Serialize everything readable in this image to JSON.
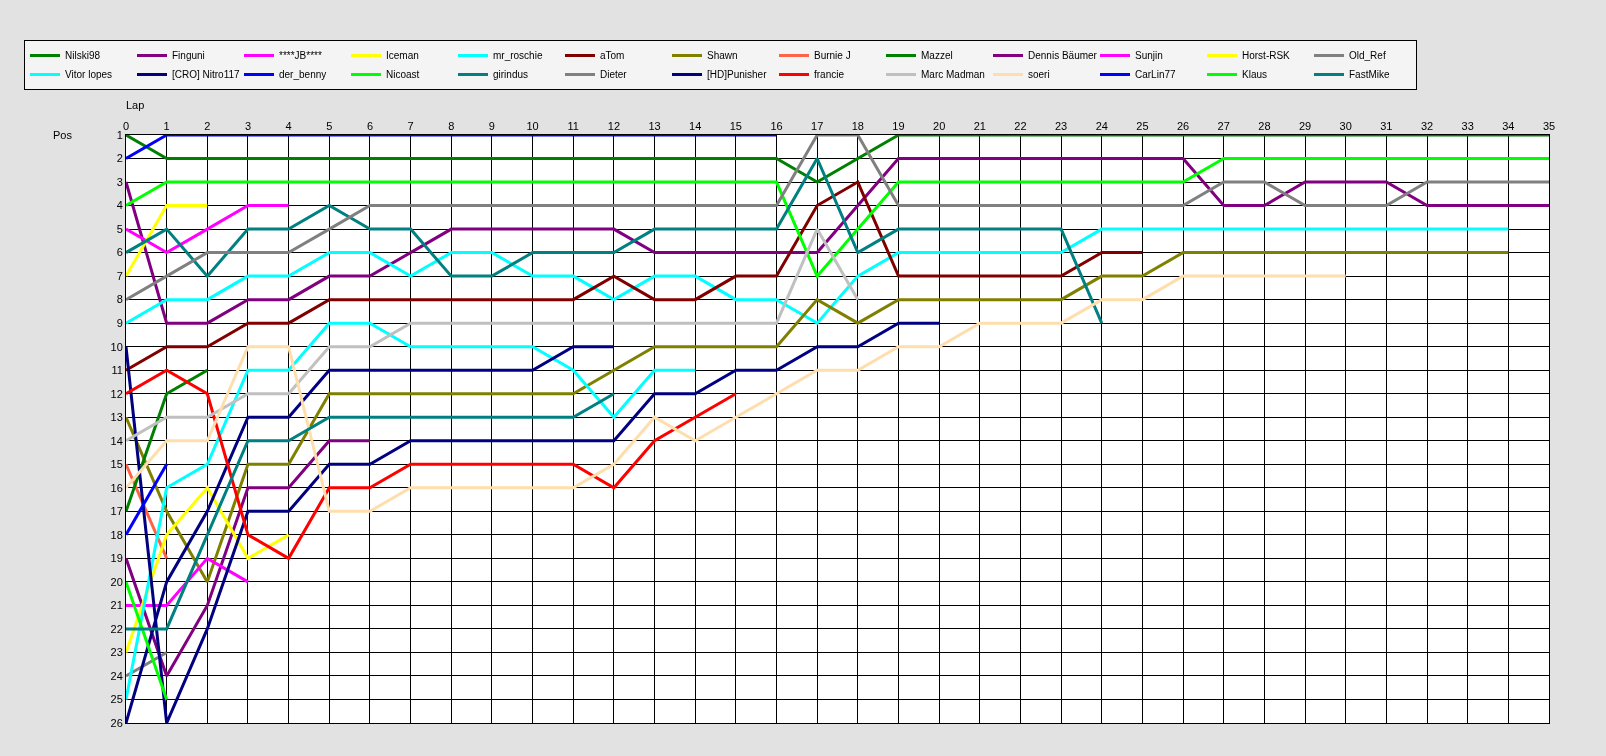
{
  "chart_data": {
    "type": "line",
    "xlabel": "Lap",
    "ylabel": "Pos",
    "x": [
      0,
      1,
      2,
      3,
      4,
      5,
      6,
      7,
      8,
      9,
      10,
      11,
      12,
      13,
      14,
      15,
      16,
      17,
      18,
      19,
      20,
      21,
      22,
      23,
      24,
      25,
      26,
      27,
      28,
      29,
      30,
      31,
      32,
      33,
      34,
      35
    ],
    "xlim": [
      0,
      35
    ],
    "xticks": [
      0,
      1,
      2,
      3,
      4,
      5,
      6,
      7,
      8,
      9,
      10,
      11,
      12,
      13,
      14,
      15,
      16,
      17,
      18,
      19,
      20,
      21,
      22,
      23,
      24,
      25,
      26,
      27,
      28,
      29,
      30,
      31,
      32,
      33,
      34,
      35
    ],
    "ylim": [
      26,
      1
    ],
    "yticks": [
      1,
      2,
      3,
      4,
      5,
      6,
      7,
      8,
      9,
      10,
      11,
      12,
      13,
      14,
      15,
      16,
      17,
      18,
      19,
      20,
      21,
      22,
      23,
      24,
      25,
      26
    ],
    "grid": true,
    "legend": "top",
    "series": [
      {
        "name": "Nilski98",
        "color": "#008000",
        "values": [
          1,
          2,
          2,
          2,
          2,
          2,
          2,
          2,
          2,
          2,
          2,
          2,
          2,
          2,
          2,
          2,
          2,
          3,
          2,
          1,
          1,
          1,
          1,
          1,
          1,
          1,
          1,
          1,
          1,
          1,
          1,
          1,
          1,
          1,
          1,
          1
        ]
      },
      {
        "name": "Finguni",
        "color": "#800080",
        "values": [
          3,
          9,
          9,
          8,
          8,
          7,
          7,
          6,
          5,
          5,
          5,
          5,
          5,
          6,
          6,
          6,
          6,
          6,
          4,
          2,
          2,
          2,
          2,
          2,
          2,
          2,
          2,
          4,
          4,
          3,
          3,
          3,
          4,
          4,
          4,
          4
        ]
      },
      {
        "name": "****JB****",
        "color": "#ff00ff",
        "values": [
          5,
          6,
          5,
          4,
          4,
          null,
          null,
          null,
          null,
          null,
          null,
          null,
          null,
          null,
          null,
          null,
          null,
          null,
          null,
          null,
          null,
          null,
          null,
          null,
          null,
          null,
          null,
          null,
          null,
          null,
          null,
          null,
          null,
          null,
          null,
          null
        ]
      },
      {
        "name": "Iceman",
        "color": "#ffff00",
        "values": [
          7,
          4,
          4,
          null,
          null,
          null,
          null,
          null,
          null,
          null,
          null,
          null,
          null,
          null,
          null,
          null,
          null,
          null,
          null,
          null,
          null,
          null,
          null,
          null,
          null,
          null,
          null,
          null,
          null,
          null,
          null,
          null,
          null,
          null,
          null,
          null
        ]
      },
      {
        "name": "mr_roschie",
        "color": "#00ffff",
        "values": [
          9,
          8,
          8,
          7,
          7,
          6,
          6,
          7,
          6,
          6,
          7,
          7,
          8,
          7,
          7,
          8,
          8,
          9,
          7,
          6,
          6,
          6,
          6,
          6,
          5,
          5,
          5,
          5,
          5,
          5,
          5,
          5,
          5,
          5,
          5,
          null
        ]
      },
      {
        "name": "aTom",
        "color": "#800000",
        "values": [
          11,
          10,
          10,
          9,
          9,
          8,
          8,
          8,
          8,
          8,
          8,
          8,
          7,
          8,
          8,
          7,
          7,
          4,
          3,
          7,
          7,
          7,
          7,
          7,
          6,
          6,
          null,
          null,
          null,
          null,
          null,
          null,
          null,
          null,
          null,
          null
        ]
      },
      {
        "name": "Shawn",
        "color": "#808000",
        "values": [
          13,
          17,
          20,
          15,
          15,
          12,
          12,
          12,
          12,
          12,
          12,
          12,
          11,
          10,
          10,
          10,
          10,
          8,
          9,
          8,
          8,
          8,
          8,
          8,
          7,
          7,
          6,
          6,
          6,
          6,
          6,
          6,
          6,
          6,
          6,
          null
        ]
      },
      {
        "name": "Burnie J",
        "color": "#ff6347",
        "values": [
          15,
          19,
          null,
          null,
          null,
          null,
          null,
          null,
          null,
          null,
          null,
          null,
          null,
          null,
          null,
          null,
          null,
          null,
          null,
          null,
          null,
          null,
          null,
          null,
          null,
          null,
          null,
          null,
          null,
          null,
          null,
          null,
          null,
          null,
          null,
          null
        ]
      },
      {
        "name": "Mazzel",
        "color": "#008000",
        "values": [
          17,
          12,
          11,
          null,
          null,
          null,
          null,
          null,
          null,
          null,
          null,
          null,
          null,
          null,
          null,
          null,
          null,
          null,
          null,
          null,
          null,
          null,
          null,
          null,
          null,
          null,
          null,
          null,
          null,
          null,
          null,
          null,
          null,
          null,
          null,
          null
        ]
      },
      {
        "name": "Dennis Bäumer",
        "color": "#800080",
        "values": [
          19,
          24,
          21,
          16,
          16,
          14,
          14,
          null,
          null,
          null,
          null,
          null,
          null,
          null,
          null,
          null,
          null,
          null,
          null,
          null,
          null,
          null,
          null,
          null,
          null,
          null,
          null,
          null,
          null,
          null,
          null,
          null,
          null,
          null,
          null,
          null
        ]
      },
      {
        "name": "Sunjin",
        "color": "#ff00ff",
        "values": [
          21,
          21,
          19,
          20,
          null,
          null,
          null,
          null,
          null,
          null,
          null,
          null,
          null,
          null,
          null,
          null,
          null,
          null,
          null,
          null,
          null,
          null,
          null,
          null,
          null,
          null,
          null,
          null,
          null,
          null,
          null,
          null,
          null,
          null,
          null,
          null
        ]
      },
      {
        "name": "Horst-RSK",
        "color": "#ffff00",
        "values": [
          23,
          18,
          16,
          19,
          18,
          null,
          null,
          null,
          null,
          null,
          null,
          null,
          null,
          null,
          null,
          null,
          null,
          null,
          null,
          null,
          null,
          null,
          null,
          null,
          null,
          null,
          null,
          null,
          null,
          null,
          null,
          null,
          null,
          null,
          null,
          null
        ]
      },
      {
        "name": "Old_Ref",
        "color": "#808080",
        "values": [
          24,
          23,
          null,
          null,
          null,
          null,
          null,
          null,
          null,
          null,
          null,
          null,
          null,
          null,
          null,
          null,
          null,
          null,
          null,
          null,
          null,
          null,
          null,
          null,
          null,
          null,
          null,
          null,
          null,
          null,
          null,
          null,
          null,
          null,
          null,
          null
        ]
      },
      {
        "name": "Vitor lopes",
        "color": "#00ffff",
        "values": [
          25,
          16,
          15,
          11,
          11,
          9,
          9,
          10,
          10,
          10,
          10,
          11,
          13,
          11,
          11,
          null,
          null,
          null,
          null,
          null,
          null,
          null,
          null,
          null,
          null,
          null,
          null,
          null,
          null,
          null,
          null,
          null,
          null,
          null,
          null,
          null
        ]
      },
      {
        "name": "[CRO] Nitro117",
        "color": "#000080",
        "values": [
          26,
          20,
          17,
          13,
          13,
          11,
          11,
          11,
          11,
          11,
          11,
          10,
          10,
          null,
          null,
          null,
          null,
          null,
          null,
          null,
          null,
          null,
          null,
          null,
          null,
          null,
          null,
          null,
          null,
          null,
          null,
          null,
          null,
          null,
          null,
          null
        ]
      },
      {
        "name": "der_benny",
        "color": "#0000ff",
        "values": [
          2,
          1,
          1,
          1,
          1,
          1,
          1,
          1,
          1,
          1,
          1,
          1,
          1,
          1,
          1,
          1,
          1,
          null,
          null,
          null,
          null,
          null,
          null,
          null,
          null,
          null,
          null,
          null,
          null,
          null,
          null,
          null,
          null,
          null,
          null,
          null
        ]
      },
      {
        "name": "Nicoast",
        "color": "#00ff00",
        "values": [
          4,
          3,
          3,
          3,
          3,
          3,
          3,
          3,
          3,
          3,
          3,
          3,
          3,
          3,
          3,
          3,
          3,
          7,
          5,
          3,
          3,
          3,
          3,
          3,
          3,
          3,
          3,
          2,
          2,
          2,
          2,
          2,
          2,
          2,
          2,
          2
        ]
      },
      {
        "name": "girindus",
        "color": "#008080",
        "values": [
          6,
          5,
          7,
          5,
          5,
          4,
          5,
          5,
          7,
          7,
          6,
          6,
          6,
          5,
          5,
          5,
          5,
          2,
          6,
          5,
          5,
          5,
          5,
          5,
          9,
          null,
          null,
          null,
          null,
          null,
          null,
          null,
          null,
          null,
          null,
          null
        ]
      },
      {
        "name": "Dieter",
        "color": "#808080",
        "values": [
          8,
          7,
          6,
          6,
          6,
          5,
          4,
          4,
          4,
          4,
          4,
          4,
          4,
          4,
          4,
          4,
          4,
          1,
          1,
          4,
          4,
          4,
          4,
          4,
          4,
          4,
          4,
          3,
          3,
          4,
          4,
          4,
          3,
          3,
          3,
          3
        ]
      },
      {
        "name": "[HD]Punisher",
        "color": "#000080",
        "values": [
          10,
          26,
          22,
          17,
          17,
          15,
          15,
          14,
          14,
          14,
          14,
          14,
          14,
          12,
          12,
          11,
          11,
          10,
          10,
          9,
          9,
          null,
          null,
          null,
          null,
          null,
          null,
          null,
          null,
          null,
          null,
          null,
          null,
          null,
          null,
          null
        ]
      },
      {
        "name": "francie",
        "color": "#ff0000",
        "values": [
          12,
          11,
          12,
          18,
          19,
          16,
          16,
          15,
          15,
          15,
          15,
          15,
          16,
          14,
          13,
          12,
          null,
          null,
          null,
          null,
          null,
          null,
          null,
          null,
          null,
          null,
          null,
          null,
          null,
          null,
          null,
          null,
          null,
          null,
          null,
          null
        ]
      },
      {
        "name": "Marc Madman",
        "color": "#c0c0c0",
        "values": [
          14,
          13,
          13,
          12,
          12,
          10,
          10,
          9,
          9,
          9,
          9,
          9,
          9,
          9,
          9,
          9,
          9,
          5,
          8,
          null,
          null,
          null,
          null,
          null,
          null,
          null,
          null,
          null,
          null,
          null,
          null,
          null,
          null,
          null,
          null,
          null
        ]
      },
      {
        "name": "soeri",
        "color": "#ffdead",
        "values": [
          16,
          14,
          14,
          10,
          10,
          17,
          17,
          16,
          16,
          16,
          16,
          16,
          15,
          13,
          14,
          13,
          12,
          11,
          11,
          10,
          10,
          9,
          9,
          9,
          8,
          8,
          7,
          7,
          7,
          7,
          7,
          null,
          null,
          null,
          null,
          null
        ]
      },
      {
        "name": "CarLin77",
        "color": "#0000ff",
        "values": [
          18,
          15,
          null,
          null,
          null,
          null,
          null,
          null,
          null,
          null,
          null,
          null,
          null,
          null,
          null,
          null,
          null,
          null,
          null,
          null,
          null,
          null,
          null,
          null,
          null,
          null,
          null,
          null,
          null,
          null,
          null,
          null,
          null,
          null,
          null,
          null
        ]
      },
      {
        "name": "Klaus",
        "color": "#00ff00",
        "values": [
          20,
          25,
          null,
          null,
          null,
          null,
          null,
          null,
          null,
          null,
          null,
          null,
          null,
          null,
          null,
          null,
          null,
          null,
          null,
          null,
          null,
          null,
          null,
          null,
          null,
          null,
          null,
          null,
          null,
          null,
          null,
          null,
          null,
          null,
          null,
          null
        ]
      },
      {
        "name": "FastMike",
        "color": "#008080",
        "values": [
          22,
          22,
          18,
          14,
          14,
          13,
          13,
          13,
          13,
          13,
          13,
          13,
          12,
          null,
          null,
          null,
          null,
          null,
          null,
          null,
          null,
          null,
          null,
          null,
          null,
          null,
          null,
          null,
          null,
          null,
          null,
          null,
          null,
          null,
          null,
          null
        ]
      }
    ]
  }
}
